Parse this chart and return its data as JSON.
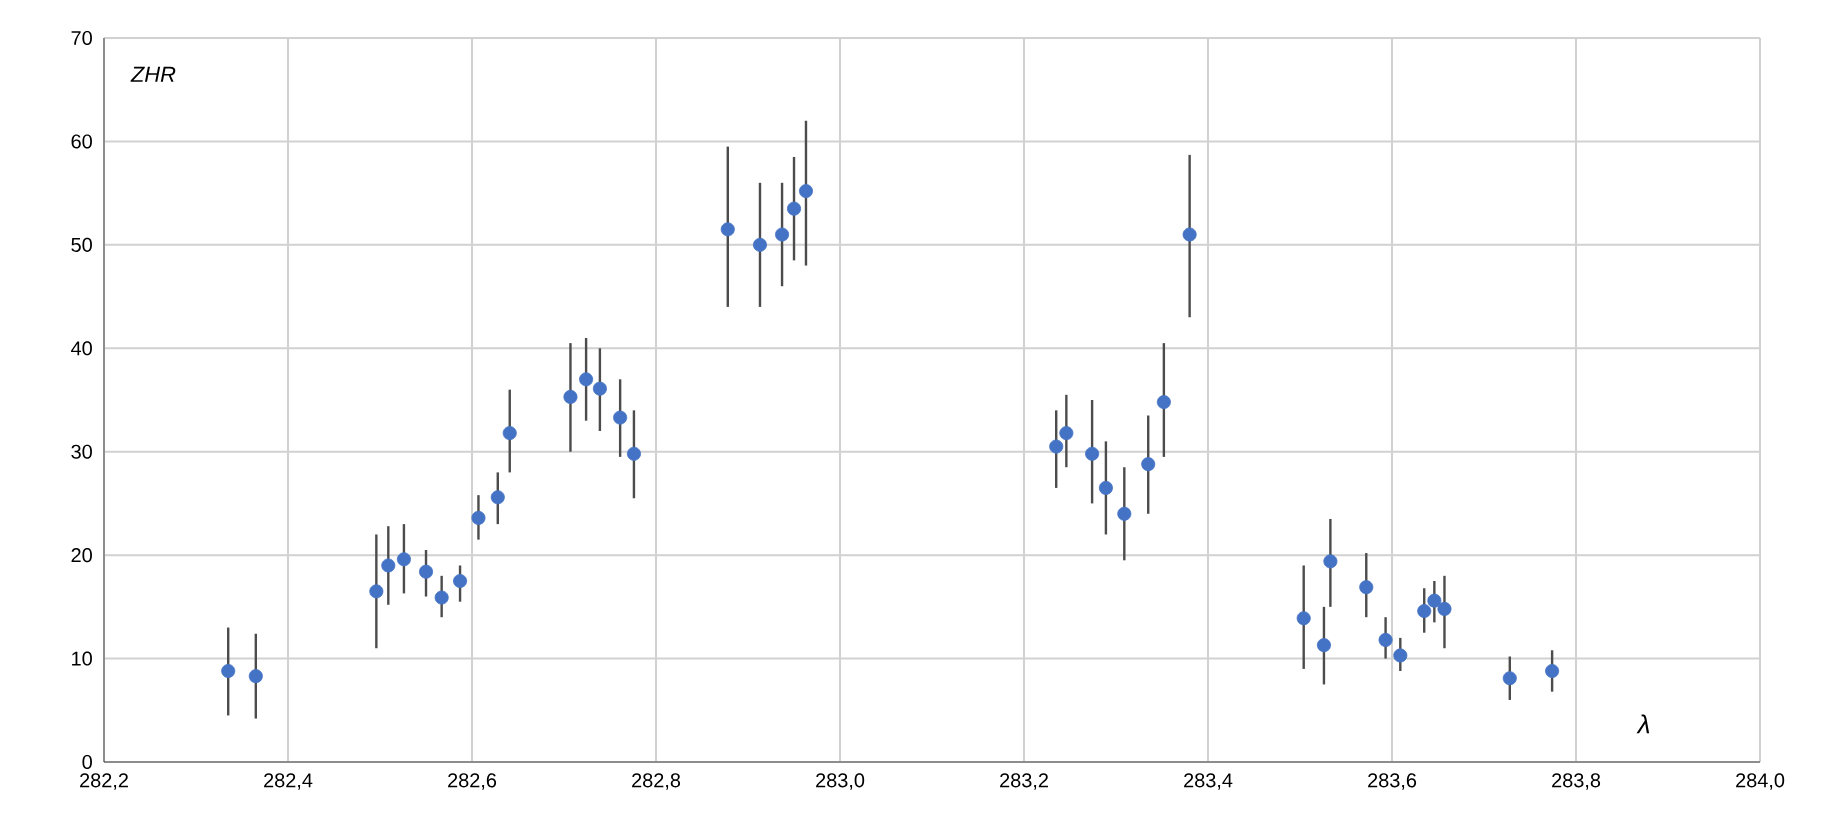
{
  "chart_data": {
    "type": "scatter",
    "xlabel": "λ",
    "ylabel": "ZHR",
    "x": [
      282.335,
      282.365,
      282.496,
      282.509,
      282.526,
      282.55,
      282.567,
      282.587,
      282.607,
      282.628,
      282.641,
      282.707,
      282.724,
      282.739,
      282.761,
      282.776,
      282.878,
      282.913,
      282.937,
      282.95,
      282.963,
      283.235,
      283.246,
      283.274,
      283.289,
      283.309,
      283.335,
      283.352,
      283.38,
      283.504,
      283.526,
      283.533,
      283.572,
      283.593,
      283.609,
      283.635,
      283.646,
      283.657,
      283.728,
      283.774
    ],
    "series": [
      {
        "color": "#4472c4",
        "values": [
          8.8,
          8.3,
          16.5,
          19.0,
          19.6,
          18.4,
          15.9,
          17.5,
          23.6,
          25.6,
          31.8,
          35.3,
          37.0,
          36.1,
          33.3,
          29.8,
          51.5,
          50.0,
          51.0,
          53.5,
          55.2,
          30.5,
          31.8,
          29.8,
          26.5,
          24.0,
          28.8,
          34.8,
          51.0,
          13.9,
          11.3,
          19.4,
          16.9,
          11.8,
          10.3,
          14.6,
          15.6,
          14.8,
          8.1,
          8.8
        ],
        "errors": [
          [
            4.5,
            13
          ],
          [
            4.2,
            12.4
          ],
          [
            11,
            22
          ],
          [
            15.2,
            22.8
          ],
          [
            16.3,
            23
          ],
          [
            16,
            20.5
          ],
          [
            14,
            18
          ],
          [
            15.5,
            19
          ],
          [
            21.5,
            25.8
          ],
          [
            23,
            28
          ],
          [
            28,
            36
          ],
          [
            30,
            40.5
          ],
          [
            33,
            41
          ],
          [
            32,
            40
          ],
          [
            29.5,
            37
          ],
          [
            25.5,
            34
          ],
          [
            44,
            59.5
          ],
          [
            44,
            56
          ],
          [
            46,
            56
          ],
          [
            48.5,
            58.5
          ],
          [
            48,
            62
          ],
          [
            26.5,
            34
          ],
          [
            28.5,
            35.5
          ],
          [
            25,
            35
          ],
          [
            22,
            31
          ],
          [
            19.5,
            28.5
          ],
          [
            24,
            33.5
          ],
          [
            29.5,
            40.5
          ],
          [
            43,
            58.7
          ],
          [
            9,
            19
          ],
          [
            7.5,
            15
          ],
          [
            15,
            23.5
          ],
          [
            14,
            20.2
          ],
          [
            10,
            14
          ],
          [
            8.8,
            12
          ],
          [
            12.5,
            16.8
          ],
          [
            13.5,
            17.5
          ],
          [
            11,
            18
          ],
          [
            6,
            10.2
          ],
          [
            6.8,
            10.8
          ]
        ]
      }
    ],
    "xlim": [
      282.2,
      284.0
    ],
    "xticks": [
      {
        "value": 282.2,
        "label": "282,2"
      },
      {
        "value": 282.4,
        "label": "282,4"
      },
      {
        "value": 282.6,
        "label": "282,6"
      },
      {
        "value": 282.8,
        "label": "282,8"
      },
      {
        "value": 283.0,
        "label": "283,0"
      },
      {
        "value": 283.2,
        "label": "283,2"
      },
      {
        "value": 283.4,
        "label": "283,4"
      },
      {
        "value": 283.6,
        "label": "283,6"
      },
      {
        "value": 283.8,
        "label": "283,8"
      },
      {
        "value": 284.0,
        "label": "284,0"
      }
    ],
    "ylim": [
      0,
      70
    ],
    "yticks": [
      0,
      10,
      20,
      30,
      40,
      50,
      60,
      70
    ],
    "grid": true,
    "marker": "circle"
  }
}
